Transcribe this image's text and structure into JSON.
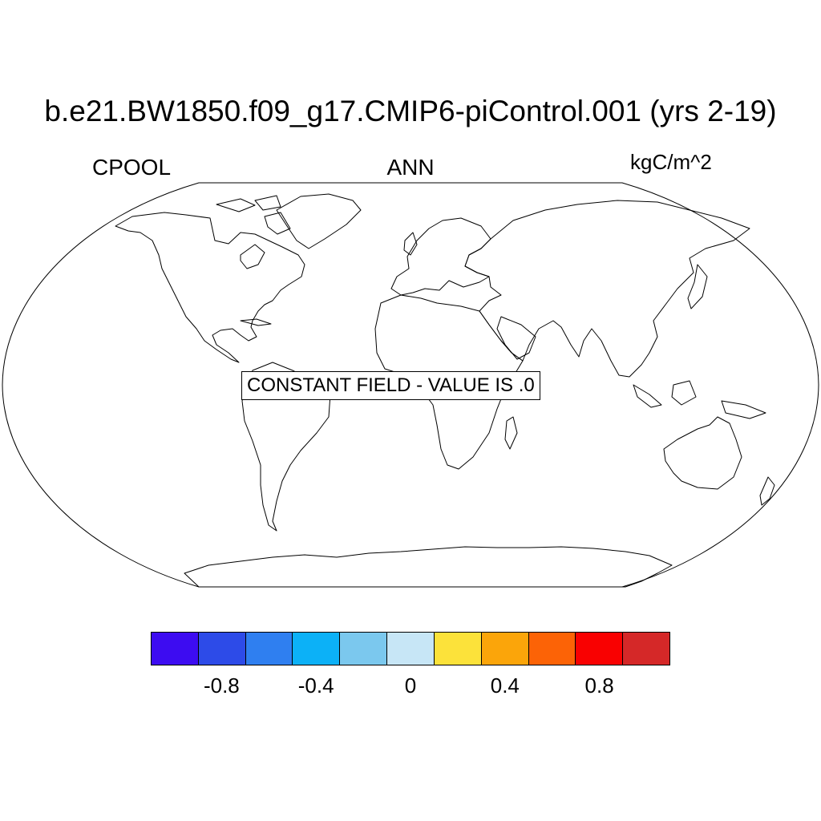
{
  "title": "b.e21.BW1850.f09_g17.CMIP6-piControl.001 (yrs 2-19)",
  "left_label": "CPOOL",
  "center_label": "ANN",
  "right_label": "kgC/m^2",
  "notice": "CONSTANT FIELD - VALUE IS .0",
  "map": {
    "projection": "Robinson",
    "field_value": 0.0
  },
  "colorbar": {
    "colors": [
      "#3d0cf1",
      "#2d4be8",
      "#2f7ff0",
      "#0cb1f7",
      "#7bc8ee",
      "#c7e6f6",
      "#fce23a",
      "#fba50a",
      "#fc6306",
      "#f90101",
      "#d52828"
    ],
    "tick_labels": [
      "-0.8",
      "-0.4",
      "0",
      "0.4",
      "0.8"
    ],
    "tick_values": [
      -0.8,
      -0.4,
      0,
      0.4,
      0.8
    ],
    "range": [
      -1.1,
      1.1
    ]
  }
}
